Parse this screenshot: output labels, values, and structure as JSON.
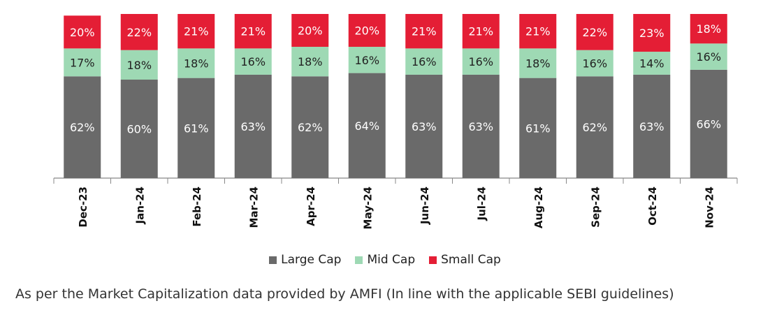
{
  "chart_data": {
    "type": "bar",
    "stacked": true,
    "categories": [
      "Dec-23",
      "Jan-24",
      "Feb-24",
      "Mar-24",
      "Apr-24",
      "May-24",
      "Jun-24",
      "Jul-24",
      "Aug-24",
      "Sep-24",
      "Oct-24",
      "Nov-24"
    ],
    "series": [
      {
        "name": "Large Cap",
        "color": "#6a6a6a",
        "values": [
          62,
          60,
          61,
          63,
          62,
          64,
          63,
          63,
          61,
          62,
          63,
          66
        ],
        "labels": [
          "62%",
          "60%",
          "61%",
          "63%",
          "62%",
          "64%",
          "63%",
          "63%",
          "61%",
          "62%",
          "63%",
          "66%"
        ]
      },
      {
        "name": "Mid Cap",
        "color": "#9ed9b4",
        "values": [
          17,
          18,
          18,
          16,
          18,
          16,
          16,
          16,
          18,
          16,
          14,
          16
        ],
        "labels": [
          "17%",
          "18%",
          "18%",
          "16%",
          "18%",
          "16%",
          "16%",
          "16%",
          "18%",
          "16%",
          "14%",
          "16%"
        ]
      },
      {
        "name": "Small Cap",
        "color": "#e41e35",
        "values": [
          20,
          22,
          21,
          21,
          20,
          20,
          21,
          21,
          21,
          22,
          23,
          18
        ],
        "labels": [
          "20%",
          "22%",
          "21%",
          "21%",
          "20%",
          "20%",
          "21%",
          "21%",
          "21%",
          "22%",
          "23%",
          "18%"
        ]
      }
    ],
    "ylim": [
      0,
      100
    ],
    "grid": false,
    "legend_position": "bottom"
  },
  "footnote": "As per the Market Capitalization data provided by AMFI (In line with the applicable SEBI guidelines)"
}
